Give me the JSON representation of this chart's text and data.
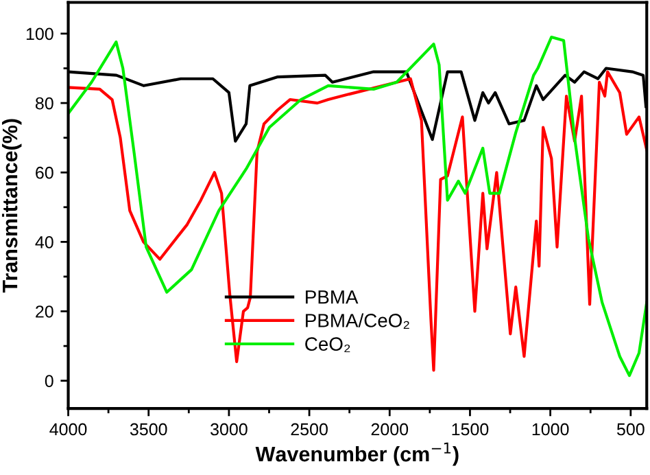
{
  "chart_data": {
    "type": "line",
    "xlabel": "Wavenumber (cm$^{−1}$)",
    "ylabel": "Transmittance(%)",
    "xlim": [
      4000,
      400
    ],
    "ylim": [
      -8,
      109
    ],
    "xticks": [
      4000,
      {
        "value": 3750,
        "label": null
      },
      3500,
      {
        "value": 3250,
        "label": null
      },
      3000,
      {
        "value": 2750,
        "label": null
      },
      2500,
      {
        "value": 2250,
        "label": null
      },
      2000,
      {
        "value": 1750,
        "label": null
      },
      1500,
      {
        "value": 1250,
        "label": null
      },
      1000,
      {
        "value": 750,
        "label": null
      },
      500
    ],
    "yticks": [
      0,
      {
        "value": 10,
        "label": null
      },
      20,
      {
        "value": 30,
        "label": null
      },
      40,
      {
        "value": 50,
        "label": null
      },
      60,
      {
        "value": 70,
        "label": null
      },
      80,
      {
        "value": 90,
        "label": null
      },
      100
    ],
    "grid": false,
    "legend": "bottom left",
    "marker": "none",
    "line_style": "solid",
    "series": [
      {
        "name": "PBMA",
        "color": "#000000",
        "x": [
          4000,
          3700,
          3530,
          3300,
          3100,
          3000,
          2960,
          2893,
          2870,
          2700,
          2400,
          2356,
          2100,
          1896,
          1734,
          1640,
          1555,
          1470,
          1420,
          1385,
          1343,
          1257,
          1163,
          1087,
          1045,
          908,
          849,
          790,
          704,
          653,
          490,
          422,
          405
        ],
        "values": [
          89,
          88,
          85,
          87,
          87,
          83,
          69,
          74,
          85,
          87.5,
          88,
          86,
          89,
          89,
          69.5,
          89,
          89,
          75,
          83,
          80,
          83,
          74,
          75,
          85,
          81,
          88,
          86,
          89,
          87,
          90,
          89,
          88,
          79
        ]
      },
      {
        "name": "PBMA/CeO₂",
        "color": "#ff0000",
        "x": [
          4000,
          3804,
          3727,
          3676,
          3617,
          3532,
          3430,
          3260,
          3175,
          3090,
          3046,
          2995,
          2952,
          2910,
          2884,
          2867,
          2825,
          2782,
          2697,
          2620,
          2450,
          2382,
          2300,
          1870,
          1802,
          1743,
          1726,
          1683,
          1640,
          1547,
          1470,
          1420,
          1394,
          1334,
          1249,
          1215,
          1163,
          1087,
          1070,
          1045,
          993,
          958,
          900,
          849,
          806,
          755,
          695,
          661,
          644,
          568,
          525,
          448,
          400
        ],
        "values": [
          84.5,
          84,
          81,
          70,
          49,
          40,
          35,
          45,
          52,
          60,
          54,
          25,
          5.5,
          20,
          21,
          24,
          66,
          74,
          78,
          81,
          80,
          81,
          82,
          87,
          75,
          17.5,
          3,
          58,
          59,
          76,
          20,
          54,
          38,
          60,
          13.5,
          27,
          7,
          46,
          33,
          73,
          64,
          38.5,
          82,
          69,
          82,
          22,
          86,
          82,
          89,
          83,
          71,
          76,
          66.5
        ]
      },
      {
        "name": "CeO₂",
        "color": "#00ee00",
        "x": [
          4000,
          3855,
          3702,
          3660,
          3591,
          3515,
          3387,
          3233,
          3063,
          2893,
          2748,
          2552,
          2382,
          2100,
          1956,
          1726,
          1692,
          1640,
          1572,
          1530,
          1420,
          1377,
          1317,
          1215,
          1104,
          1078,
          993,
          917,
          849,
          763,
          678,
          568,
          508,
          448,
          400
        ],
        "values": [
          77,
          86,
          97.6,
          90,
          66,
          38.5,
          25.5,
          32,
          49,
          61,
          73,
          81,
          85,
          84,
          86,
          97,
          91,
          52,
          57.5,
          54,
          67,
          54,
          54,
          71.5,
          88,
          90,
          99,
          98,
          70,
          41,
          22.6,
          7,
          1.5,
          8,
          22.6
        ]
      }
    ]
  }
}
